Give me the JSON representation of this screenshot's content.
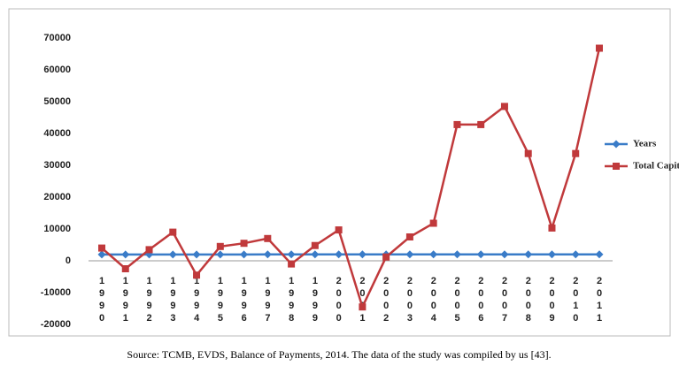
{
  "chart_data": {
    "type": "line",
    "categories": [
      "1990",
      "1991",
      "1992",
      "1993",
      "1994",
      "1995",
      "1996",
      "1997",
      "1998",
      "1999",
      "2000",
      "2001",
      "2002",
      "2003",
      "2004",
      "2005",
      "2006",
      "2007",
      "2008",
      "2009",
      "2010",
      "2011"
    ],
    "series": [
      {
        "name": "Years",
        "color": "#3a7cc8",
        "marker": "diamond",
        "values": [
          1990,
          1991,
          1992,
          1993,
          1994,
          1995,
          1996,
          1997,
          1998,
          1999,
          2000,
          2001,
          2002,
          2003,
          2004,
          2005,
          2006,
          2007,
          2008,
          2009,
          2010,
          2011
        ]
      },
      {
        "name": "Total Capital",
        "color": "#c0393b",
        "marker": "square",
        "values": [
          4000,
          -2500,
          3500,
          9000,
          -4500,
          4500,
          5500,
          7000,
          -1000,
          4800,
          9700,
          -14500,
          1200,
          7500,
          11800,
          42800,
          42800,
          48500,
          33700,
          10300,
          33700,
          66800
        ]
      }
    ],
    "ylim": [
      -20000,
      70000
    ],
    "yticks": [
      -20000,
      -10000,
      0,
      10000,
      20000,
      30000,
      40000,
      50000,
      60000,
      70000
    ],
    "grid": false,
    "legend": "right",
    "caption": "Source: TCMB, EVDS, Balance of Payments, 2014. The data of the study was compiled by us [43]."
  }
}
